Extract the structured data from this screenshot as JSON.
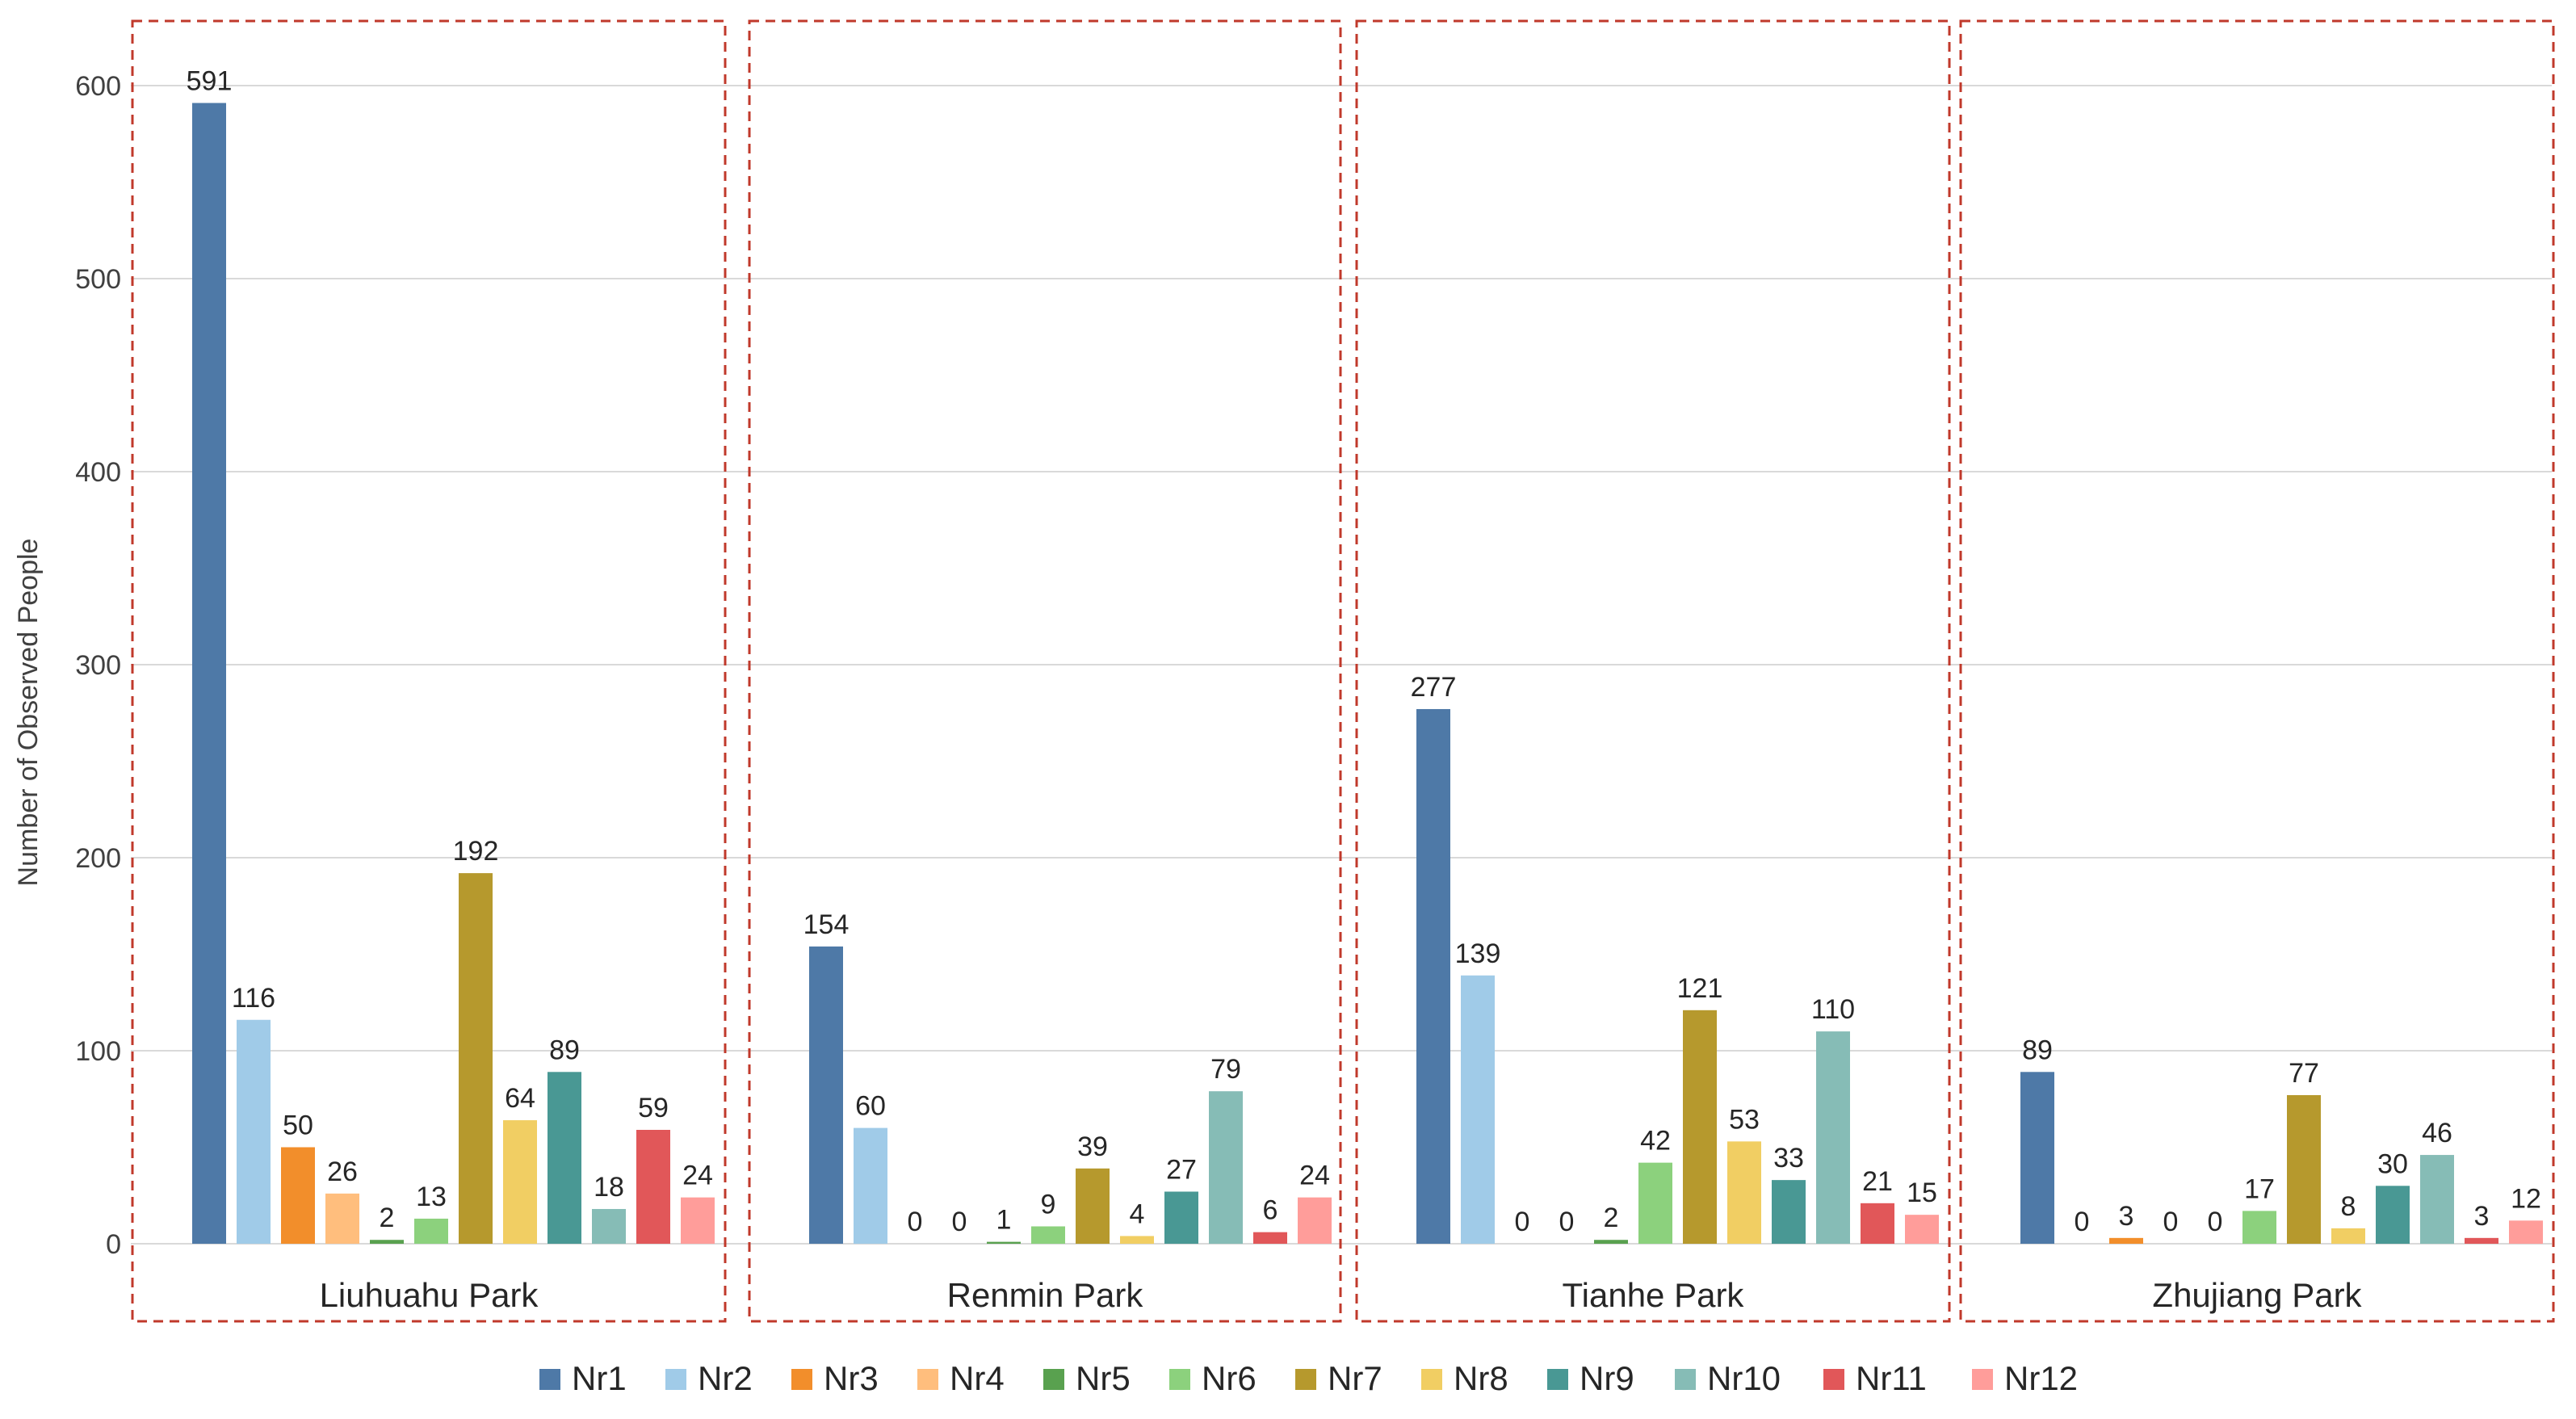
{
  "chart_data": {
    "type": "bar",
    "title": "",
    "xlabel": "",
    "ylabel": "Number of Observed People",
    "ylim": [
      0,
      600
    ],
    "yticks": [
      0,
      100,
      200,
      300,
      400,
      500,
      600
    ],
    "grid": true,
    "legend_position": "bottom",
    "categories": [
      "Liuhuahu Park",
      "Renmin Park",
      "Tianhe Park",
      "Zhujiang Park"
    ],
    "series": [
      {
        "name": "Nr1",
        "color": "#4e79a7",
        "values": [
          591,
          154,
          277,
          89
        ]
      },
      {
        "name": "Nr2",
        "color": "#a0cbe8",
        "values": [
          116,
          60,
          139,
          0
        ]
      },
      {
        "name": "Nr3",
        "color": "#f28e2b",
        "values": [
          50,
          0,
          0,
          3
        ]
      },
      {
        "name": "Nr4",
        "color": "#ffbe7d",
        "values": [
          26,
          0,
          0,
          0
        ]
      },
      {
        "name": "Nr5",
        "color": "#59a14f",
        "values": [
          2,
          1,
          2,
          0
        ]
      },
      {
        "name": "Nr6",
        "color": "#8cd17d",
        "values": [
          13,
          9,
          42,
          17
        ]
      },
      {
        "name": "Nr7",
        "color": "#b6992d",
        "values": [
          192,
          39,
          121,
          77
        ]
      },
      {
        "name": "Nr8",
        "color": "#f1ce63",
        "values": [
          64,
          4,
          53,
          8
        ]
      },
      {
        "name": "Nr9",
        "color": "#499894",
        "values": [
          89,
          27,
          33,
          30
        ]
      },
      {
        "name": "Nr10",
        "color": "#86bcb6",
        "values": [
          18,
          79,
          110,
          46
        ]
      },
      {
        "name": "Nr11",
        "color": "#e15759",
        "values": [
          59,
          6,
          21,
          3
        ]
      },
      {
        "name": "Nr12",
        "color": "#ff9d9a",
        "values": [
          24,
          24,
          15,
          12
        ]
      }
    ]
  }
}
